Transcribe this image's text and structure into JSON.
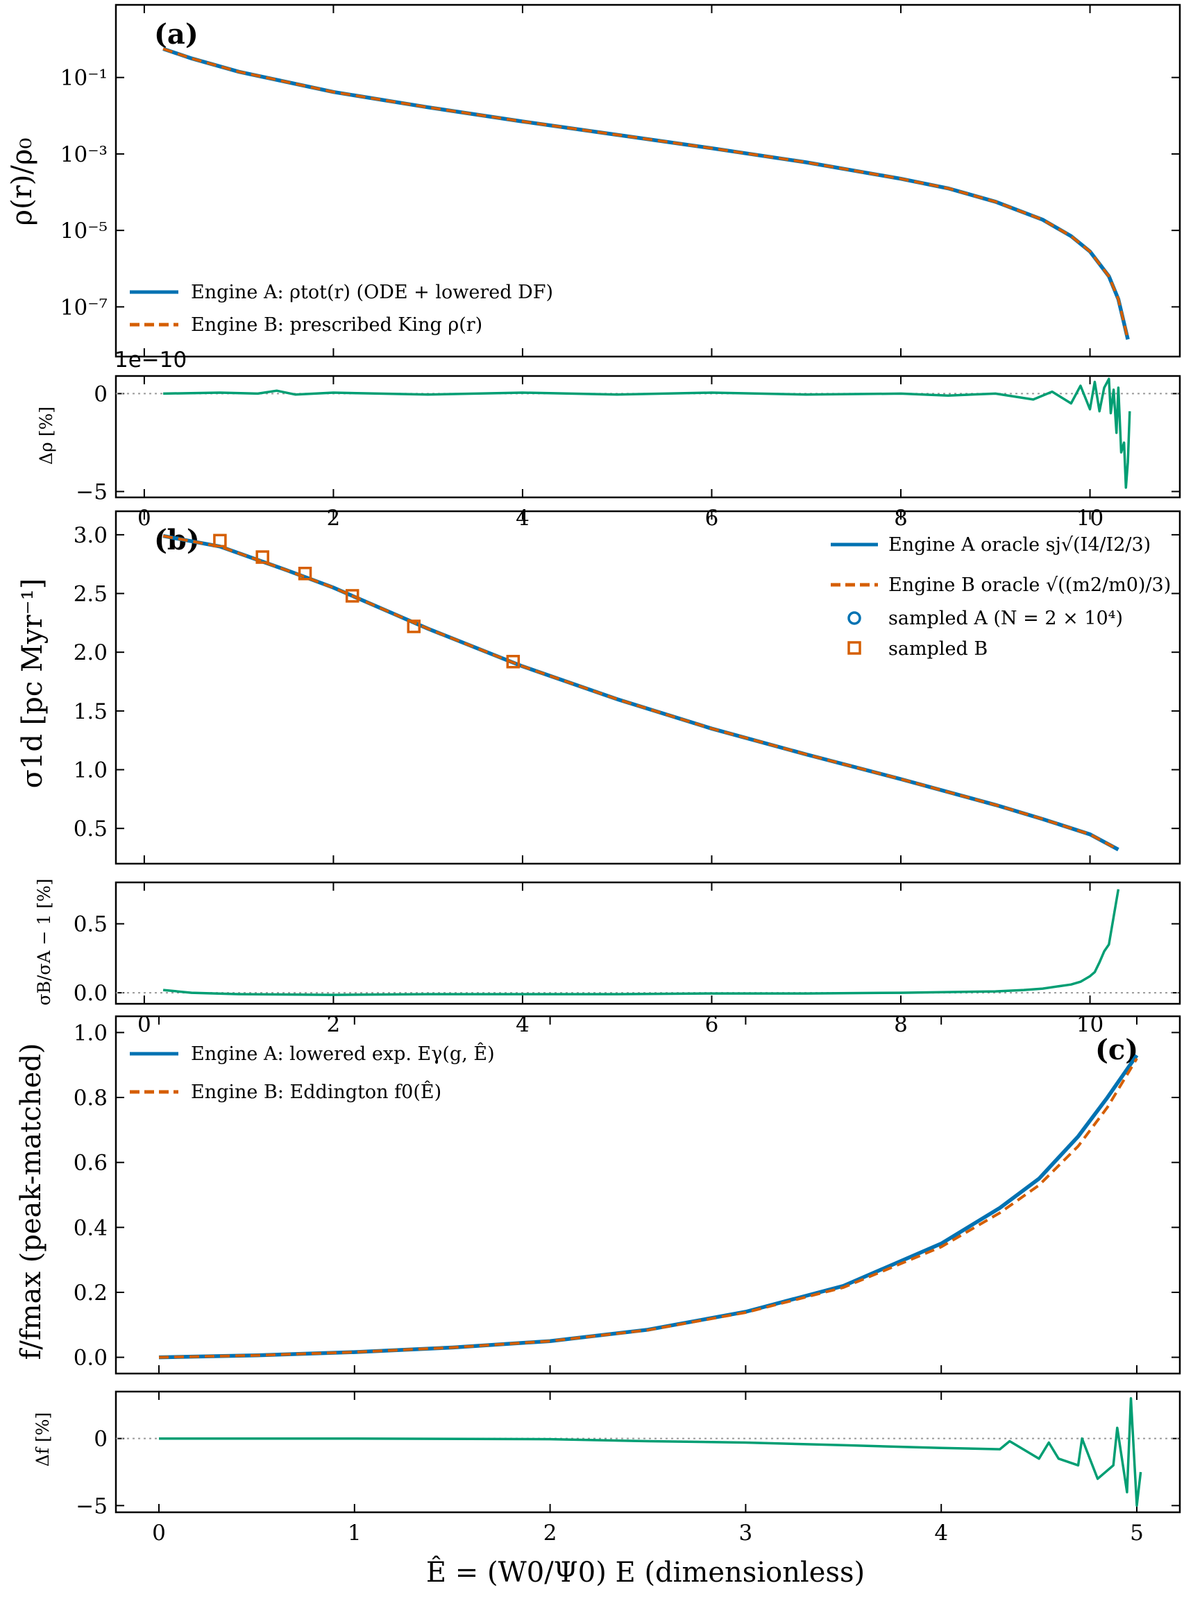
{
  "colors": {
    "engine_a": "#0072b2",
    "engine_b": "#d55e00",
    "residual": "#009e73",
    "zero_line": "#999999"
  },
  "chart_data": [
    {
      "panel": "a",
      "type": "line",
      "tag": "(a)",
      "ylabel": "ρ(r)/ρ₀",
      "yscale": "log",
      "xlim": [
        -0.3,
        10.95
      ],
      "ylim_log10": [
        -8.3,
        0.9
      ],
      "x_ticks": [
        0,
        2,
        4,
        6,
        8,
        10
      ],
      "y_ticks": [
        {
          "value": -1,
          "label": "10⁻¹"
        },
        {
          "value": -3,
          "label": "10⁻³"
        },
        {
          "value": -5,
          "label": "10⁻⁵"
        },
        {
          "value": -7,
          "label": "10⁻⁷"
        }
      ],
      "legend_position": "lower-left",
      "series": [
        {
          "name": "Engine A: ρtot(r) (ODE + lowered DF)",
          "style": "solid",
          "color": "#0072b2"
        },
        {
          "name": "Engine B: prescribed King ρ(r)",
          "style": "dashed",
          "color": "#d55e00"
        }
      ],
      "x": [
        0.2,
        0.5,
        1.0,
        2.0,
        3.0,
        4.0,
        5.0,
        6.0,
        7.0,
        8.0,
        8.5,
        9.0,
        9.5,
        9.8,
        10.0,
        10.2,
        10.3,
        10.4
      ],
      "y_log10": [
        -0.25,
        -0.5,
        -0.85,
        -1.38,
        -1.78,
        -2.15,
        -2.5,
        -2.85,
        -3.22,
        -3.65,
        -3.9,
        -4.25,
        -4.72,
        -5.15,
        -5.55,
        -6.2,
        -6.8,
        -7.85
      ]
    },
    {
      "panel": "a-residual",
      "type": "line",
      "ylabel": "Δρ [%]",
      "offset_text": "1e−10",
      "xlim": [
        -0.3,
        10.95
      ],
      "ylim": [
        -5.3,
        0.9
      ],
      "x_ticks": [
        0,
        2,
        4,
        6,
        8,
        10
      ],
      "y_ticks": [
        {
          "value": 0,
          "label": "0"
        },
        {
          "value": -5,
          "label": "−5"
        }
      ],
      "x_tick_labels": [
        "0",
        "2",
        "4",
        "6",
        "8",
        "10"
      ],
      "series": [
        {
          "name": "",
          "color": "#009e73",
          "x": [
            0.2,
            0.8,
            1.2,
            1.4,
            1.6,
            2.0,
            3.0,
            4.0,
            5.0,
            6.0,
            7.0,
            8.0,
            8.5,
            9.0,
            9.4,
            9.6,
            9.8,
            9.9,
            10.0,
            10.05,
            10.1,
            10.15,
            10.2,
            10.22,
            10.25,
            10.28,
            10.3,
            10.33,
            10.36,
            10.38,
            10.4,
            10.42
          ],
          "values": [
            0,
            0.05,
            0,
            0.15,
            -0.05,
            0.05,
            -0.05,
            0.05,
            -0.05,
            0.05,
            -0.05,
            0.0,
            -0.1,
            0.0,
            -0.3,
            0.1,
            -0.5,
            0.4,
            -0.8,
            0.6,
            -0.9,
            0.3,
            0.75,
            -1.0,
            0.2,
            -2.0,
            0.3,
            -3.0,
            -2.5,
            -4.8,
            -3.5,
            -0.9
          ]
        }
      ]
    },
    {
      "panel": "b",
      "type": "line",
      "tag": "(b)",
      "ylabel": "σ1d [pc Myr⁻¹]",
      "xlim": [
        -0.3,
        10.95
      ],
      "ylim": [
        0.2,
        3.2
      ],
      "x_ticks": [
        0,
        2,
        4,
        6,
        8,
        10
      ],
      "y_ticks": [
        {
          "value": 0.5,
          "label": "0.5"
        },
        {
          "value": 1.0,
          "label": "1.0"
        },
        {
          "value": 1.5,
          "label": "1.5"
        },
        {
          "value": 2.0,
          "label": "2.0"
        },
        {
          "value": 2.5,
          "label": "2.5"
        },
        {
          "value": 3.0,
          "label": "3.0"
        }
      ],
      "legend_position": "upper-right",
      "series": [
        {
          "name": "Engine A oracle sj√(I4/I2/3)",
          "style": "solid",
          "color": "#0072b2"
        },
        {
          "name": "Engine B oracle √((m2/m0)/3)",
          "style": "dashed",
          "color": "#d55e00"
        },
        {
          "name": "sampled A (N = 2 × 10⁴)",
          "style": "marker-circle",
          "color": "#0072b2"
        },
        {
          "name": "sampled B",
          "style": "marker-square",
          "color": "#d55e00"
        }
      ],
      "x": [
        0.2,
        0.8,
        1.5,
        2.0,
        3.0,
        4.0,
        5.0,
        6.0,
        7.0,
        8.0,
        9.0,
        9.5,
        10.0,
        10.3
      ],
      "y": [
        2.99,
        2.9,
        2.7,
        2.55,
        2.2,
        1.88,
        1.6,
        1.35,
        1.13,
        0.92,
        0.7,
        0.58,
        0.45,
        0.32
      ],
      "sampled_b": {
        "x": [
          0.8,
          1.25,
          1.7,
          2.2,
          2.85,
          3.9
        ],
        "y": [
          2.95,
          2.81,
          2.67,
          2.48,
          2.22,
          1.92
        ]
      }
    },
    {
      "panel": "b-residual",
      "type": "line",
      "ylabel": "σB/σA − 1 [%]",
      "xlim": [
        -0.3,
        10.95
      ],
      "ylim": [
        -0.08,
        0.8
      ],
      "x_ticks": [
        0,
        2,
        4,
        6,
        8,
        10
      ],
      "y_ticks": [
        {
          "value": 0.0,
          "label": "0.0"
        },
        {
          "value": 0.5,
          "label": "0.5"
        }
      ],
      "x_tick_labels": [
        "0",
        "2",
        "4",
        "6",
        "8",
        "10"
      ],
      "series": [
        {
          "name": "",
          "color": "#009e73",
          "x": [
            0.2,
            0.5,
            1.0,
            2.0,
            3.0,
            4.0,
            5.0,
            6.0,
            7.0,
            8.0,
            9.0,
            9.3,
            9.5,
            9.7,
            9.8,
            9.9,
            10.0,
            10.05,
            10.1,
            10.15,
            10.2,
            10.25,
            10.3
          ],
          "values": [
            0.02,
            0.0,
            -0.01,
            -0.015,
            -0.01,
            -0.01,
            -0.01,
            -0.005,
            -0.005,
            0.0,
            0.01,
            0.02,
            0.03,
            0.05,
            0.06,
            0.08,
            0.12,
            0.15,
            0.22,
            0.3,
            0.35,
            0.55,
            0.75
          ]
        }
      ]
    },
    {
      "panel": "c",
      "type": "line",
      "tag": "(c)",
      "ylabel": "f/fmax (peak-matched)",
      "xlim": [
        -0.22,
        5.22
      ],
      "ylim": [
        -0.05,
        1.05
      ],
      "x_ticks": [
        0,
        1,
        2,
        3,
        4,
        5
      ],
      "y_ticks": [
        {
          "value": 0.0,
          "label": "0.0"
        },
        {
          "value": 0.2,
          "label": "0.2"
        },
        {
          "value": 0.4,
          "label": "0.4"
        },
        {
          "value": 0.6,
          "label": "0.6"
        },
        {
          "value": 0.8,
          "label": "0.8"
        },
        {
          "value": 1.0,
          "label": "1.0"
        }
      ],
      "legend_position": "upper-left",
      "series": [
        {
          "name": "Engine A: lowered exp. Eγ(g, Ê)",
          "style": "solid",
          "color": "#0072b2",
          "x": [
            0,
            0.5,
            1.0,
            1.5,
            2.0,
            2.5,
            3.0,
            3.5,
            4.0,
            4.3,
            4.5,
            4.7,
            4.85,
            5.0
          ],
          "values": [
            0.0,
            0.006,
            0.016,
            0.03,
            0.05,
            0.085,
            0.14,
            0.22,
            0.35,
            0.46,
            0.55,
            0.68,
            0.8,
            0.93
          ]
        },
        {
          "name": "Engine B: Eddington f0(Ê)",
          "style": "dashed",
          "color": "#d55e00",
          "x": [
            0,
            0.5,
            1.0,
            1.5,
            2.0,
            2.5,
            3.0,
            3.5,
            4.0,
            4.3,
            4.5,
            4.7,
            4.85,
            5.0
          ],
          "values": [
            0.0,
            0.006,
            0.016,
            0.03,
            0.05,
            0.084,
            0.138,
            0.215,
            0.34,
            0.445,
            0.53,
            0.65,
            0.77,
            0.92
          ]
        }
      ]
    },
    {
      "panel": "c-residual",
      "type": "line",
      "ylabel": "Δf [%]",
      "xlabel": "Ê = (W0/Ψ0) E (dimensionless)",
      "xlim": [
        -0.22,
        5.22
      ],
      "ylim": [
        -5.5,
        3.5
      ],
      "x_ticks": [
        0,
        1,
        2,
        3,
        4,
        5
      ],
      "x_tick_labels": [
        "0",
        "1",
        "2",
        "3",
        "4",
        "5"
      ],
      "y_ticks": [
        {
          "value": 0,
          "label": "0"
        },
        {
          "value": -5,
          "label": "−5"
        }
      ],
      "series": [
        {
          "name": "",
          "color": "#009e73",
          "x": [
            0,
            1.0,
            2.0,
            2.5,
            3.0,
            3.5,
            4.0,
            4.3,
            4.35,
            4.5,
            4.55,
            4.6,
            4.7,
            4.72,
            4.8,
            4.88,
            4.9,
            4.95,
            4.97,
            5.0,
            5.02
          ],
          "values": [
            0.0,
            0.0,
            -0.05,
            -0.2,
            -0.3,
            -0.5,
            -0.7,
            -0.8,
            -0.2,
            -1.5,
            -0.3,
            -1.5,
            -2.0,
            0.0,
            -3.0,
            -2.0,
            0.8,
            -4.0,
            3.0,
            -5.0,
            -2.5
          ]
        }
      ]
    }
  ]
}
